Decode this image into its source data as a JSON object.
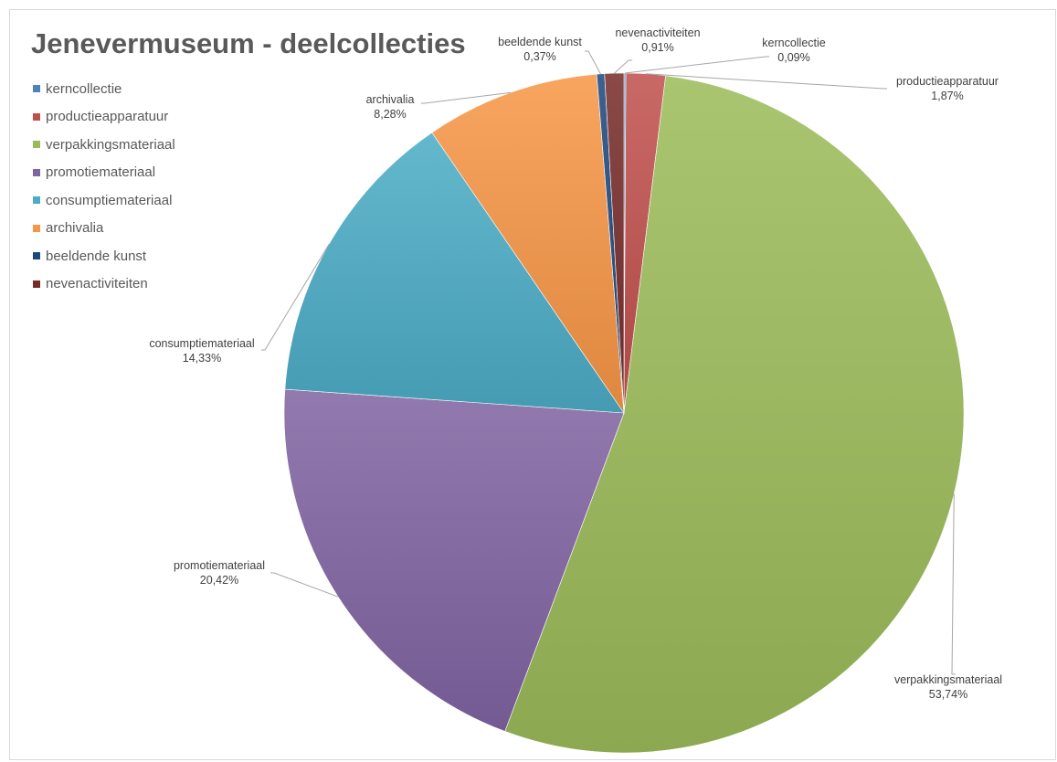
{
  "chart_data": {
    "type": "pie",
    "title": "Jenevermuseum - deelcollecties",
    "legend_position": "left",
    "slices": [
      {
        "name": "kerncollectie",
        "value": 0.09,
        "label": "0,09%",
        "color": "#4f81bd"
      },
      {
        "name": "productieapparatuur",
        "value": 1.87,
        "label": "1,87%",
        "color": "#c0504d"
      },
      {
        "name": "verpakkingsmateriaal",
        "value": 53.74,
        "label": "53,74%",
        "color": "#9bbb59"
      },
      {
        "name": "promotiemateriaal",
        "value": 20.42,
        "label": "20,42%",
        "color": "#8064a2"
      },
      {
        "name": "consumptiemateriaal",
        "value": 14.33,
        "label": "14,33%",
        "color": "#4bacc6"
      },
      {
        "name": "archivalia",
        "value": 8.28,
        "label": "8,28%",
        "color": "#f79646"
      },
      {
        "name": "beeldende kunst",
        "value": 0.37,
        "label": "0,37%",
        "color": "#1f497d"
      },
      {
        "name": "nevenactiviteiten",
        "value": 0.91,
        "label": "0,91%",
        "color": "#772c2a"
      }
    ]
  }
}
